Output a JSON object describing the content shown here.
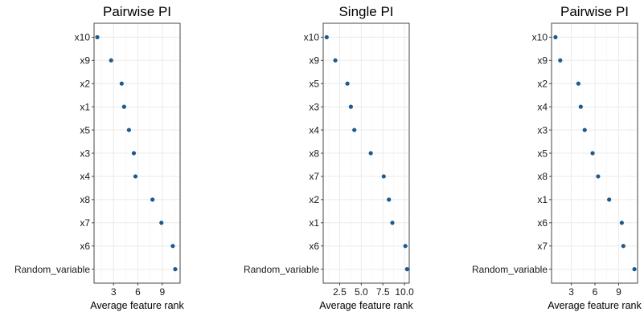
{
  "chart_data": [
    {
      "type": "scatter",
      "title": "Pairwise PI",
      "xlabel": "Average feature rank",
      "ylabel": "",
      "xlim": [
        0.6,
        11.2
      ],
      "xticks": [
        3,
        6,
        9
      ],
      "xtick_labels": [
        "3",
        "6",
        "9"
      ],
      "categories": [
        "x10",
        "x9",
        "x2",
        "x1",
        "x5",
        "x3",
        "x4",
        "x8",
        "x7",
        "x6",
        "Random_variable"
      ],
      "values": [
        1.0,
        2.7,
        4.0,
        4.3,
        4.9,
        5.5,
        5.7,
        7.8,
        8.9,
        10.3,
        10.6
      ],
      "point_color": "#1f5a8c",
      "grid": true,
      "legend": "none"
    },
    {
      "type": "scatter",
      "title": "Single PI",
      "xlabel": "Average feature rank",
      "ylabel": "",
      "xlim": [
        0.6,
        10.55
      ],
      "xticks": [
        2.5,
        5.0,
        7.5,
        10.0
      ],
      "xtick_labels": [
        "2.5",
        "5.0",
        "7.5",
        "10.0"
      ],
      "categories": [
        "x10",
        "x9",
        "x5",
        "x3",
        "x4",
        "x8",
        "x7",
        "x2",
        "x1",
        "x6",
        "Random_variable"
      ],
      "values": [
        1.0,
        2.0,
        3.4,
        3.8,
        4.2,
        6.1,
        7.6,
        8.2,
        8.6,
        10.1,
        10.3
      ],
      "point_color": "#1f5a8c",
      "grid": true,
      "legend": "none"
    },
    {
      "type": "scatter",
      "title": "Pairwise PI",
      "xlabel": "Average feature rank",
      "ylabel": "",
      "xlim": [
        0.5,
        11.4
      ],
      "xticks": [
        3,
        6,
        9
      ],
      "xtick_labels": [
        "3",
        "6",
        "9"
      ],
      "categories": [
        "x10",
        "x9",
        "x2",
        "x4",
        "x3",
        "x5",
        "x8",
        "x1",
        "x6",
        "x7",
        "Random_variable"
      ],
      "values": [
        1.0,
        1.6,
        3.9,
        4.2,
        4.7,
        5.7,
        6.4,
        7.8,
        9.4,
        9.6,
        11.0
      ],
      "point_color": "#1f5a8c",
      "grid": true,
      "legend": "none"
    }
  ]
}
